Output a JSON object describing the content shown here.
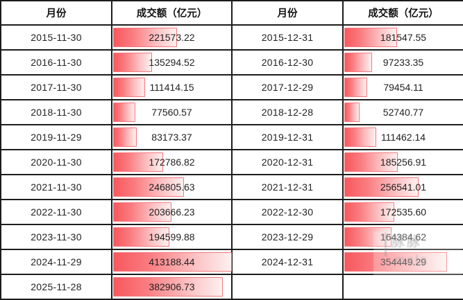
{
  "table": {
    "headers": {
      "month": "月份",
      "amount": "成交额（亿元）"
    },
    "rows": [
      {
        "m1": "2015-11-30",
        "v1": "221573.22",
        "m2": "2015-12-31",
        "v2": "181547.55"
      },
      {
        "m1": "2016-11-30",
        "v1": "135294.52",
        "m2": "2016-12-30",
        "v2": "97233.35"
      },
      {
        "m1": "2017-11-30",
        "v1": "111414.15",
        "m2": "2017-12-29",
        "v2": "79454.11"
      },
      {
        "m1": "2018-11-30",
        "v1": "77560.57",
        "m2": "2018-12-28",
        "v2": "52740.77"
      },
      {
        "m1": "2019-11-29",
        "v1": "83173.37",
        "m2": "2019-12-31",
        "v2": "111462.14"
      },
      {
        "m1": "2020-11-30",
        "v1": "172786.82",
        "m2": "2020-12-31",
        "v2": "185256.91"
      },
      {
        "m1": "2021-11-30",
        "v1": "246805.63",
        "m2": "2021-12-31",
        "v2": "256541.01"
      },
      {
        "m1": "2022-11-30",
        "v1": "203666.23",
        "m2": "2022-12-30",
        "v2": "172535.60"
      },
      {
        "m1": "2023-11-30",
        "v1": "194599.88",
        "m2": "2023-12-29",
        "v2": "164384.62"
      },
      {
        "m1": "2024-11-29",
        "v1": "413188.44",
        "m2": "2024-12-31",
        "v2": "354449.29"
      },
      {
        "m1": "2025-11-28",
        "v1": "382906.73",
        "m2": "",
        "v2": ""
      }
    ]
  },
  "chart_data": {
    "type": "table",
    "title": "",
    "columns": [
      "月份",
      "成交额（亿元）",
      "月份",
      "成交额（亿元）"
    ],
    "rows": [
      [
        "2015-11-30",
        221573.22,
        "2015-12-31",
        181547.55
      ],
      [
        "2016-11-30",
        135294.52,
        "2016-12-30",
        97233.35
      ],
      [
        "2017-11-30",
        111414.15,
        "2017-12-29",
        79454.11
      ],
      [
        "2018-11-30",
        77560.57,
        "2018-12-28",
        52740.77
      ],
      [
        "2019-11-29",
        83173.37,
        "2019-12-31",
        111462.14
      ],
      [
        "2020-11-30",
        172786.82,
        "2020-12-31",
        185256.91
      ],
      [
        "2021-11-30",
        246805.63,
        "2021-12-31",
        256541.01
      ],
      [
        "2022-11-30",
        203666.23,
        "2022-12-30",
        172535.6
      ],
      [
        "2023-11-30",
        194599.88,
        "2023-12-29",
        164384.62
      ],
      [
        "2024-11-29",
        413188.44,
        "2024-12-31",
        354449.29
      ],
      [
        "2025-11-28",
        382906.73,
        null,
        null
      ]
    ],
    "databar_max": 413188.44,
    "layout": {
      "grid": true,
      "databar_fill": "in-cell gradient bars, left-aligned, width proportional to value"
    }
  },
  "colors": {
    "grid_line": "#1c1c1c",
    "bar_start": "#f8585d",
    "bar_end": "#fdf0f0",
    "bar_border": "#f3797d",
    "text": "#212121",
    "background": "#ffffff"
  },
  "watermark": {
    "line1": "脉脉",
    "line2": "mala"
  }
}
